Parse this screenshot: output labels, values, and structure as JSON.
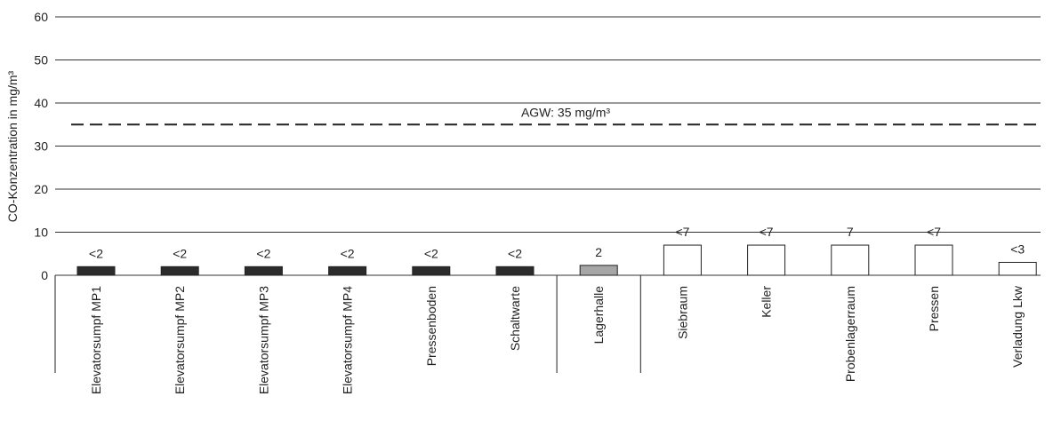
{
  "chart_data": {
    "type": "bar",
    "ylabel": "CO-Konzentration in mg/m³",
    "ylim": [
      0,
      60
    ],
    "yticks": [
      0,
      10,
      20,
      30,
      40,
      50,
      60
    ],
    "grid": true,
    "categories": [
      "Elevatorsumpf MP1",
      "Elevatorsumpf MP2",
      "Elevatorsumpf MP3",
      "Elevatorsumpf MP4",
      "Pressenboden",
      "Schaltwarte",
      "Lagerhalle",
      "Siebraum",
      "Keller",
      "Probenlagerraum",
      "Pressen",
      "Verladung Lkw"
    ],
    "values": [
      2,
      2,
      2,
      2,
      2,
      2,
      2.3,
      7,
      7,
      7,
      7,
      3
    ],
    "value_labels": [
      "<2",
      "<2",
      "<2",
      "<2",
      "<2",
      "<2",
      "2",
      "<7",
      "<7",
      "7",
      "<7",
      "<3"
    ],
    "bar_colors": [
      "#2b2b2b",
      "#2b2b2b",
      "#2b2b2b",
      "#2b2b2b",
      "#2b2b2b",
      "#2b2b2b",
      "#a6a6a6",
      "#ffffff",
      "#ffffff",
      "#ffffff",
      "#ffffff",
      "#ffffff"
    ],
    "group_breaks_after": [
      5,
      6
    ],
    "reference_line": {
      "value": 35,
      "label": "AGW: 35 mg/m³",
      "style": "dashed"
    }
  }
}
